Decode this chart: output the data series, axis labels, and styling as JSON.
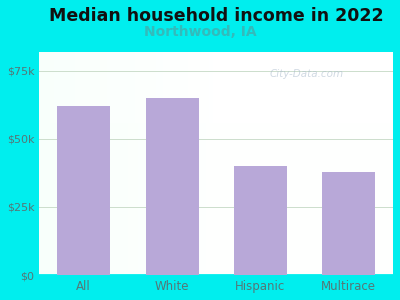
{
  "title": "Median household income in 2022",
  "subtitle": "Northwood, IA",
  "categories": [
    "All",
    "White",
    "Hispanic",
    "Multirace"
  ],
  "values": [
    62000,
    65000,
    40000,
    38000
  ],
  "bar_color": "#b8a8d8",
  "title_fontsize": 12.5,
  "subtitle_fontsize": 10,
  "subtitle_color": "#33bbbb",
  "title_color": "#111111",
  "tick_color": "#557777",
  "background_outer": "#00eeee",
  "yticks": [
    0,
    25000,
    50000,
    75000
  ],
  "ytick_labels": [
    "$0",
    "$25k",
    "$50k",
    "$75k"
  ],
  "ylim": [
    0,
    82000
  ],
  "watermark": "City-Data.com"
}
